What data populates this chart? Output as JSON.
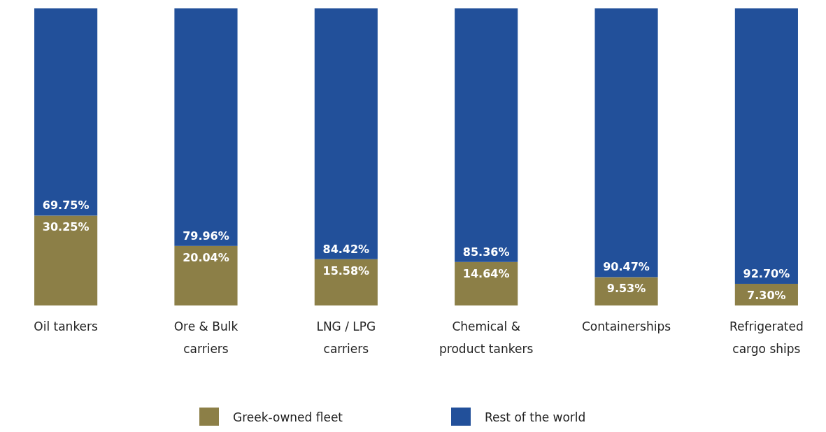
{
  "chart_data": {
    "type": "bar",
    "stacked": true,
    "categories": [
      "Oil tankers",
      "Ore & Bulk carriers",
      "LNG / LPG carriers",
      "Chemical & product tankers",
      "Containerships",
      "Refrigerated cargo ships"
    ],
    "series": [
      {
        "name": "Greek-owned fleet",
        "color": "#8c7f47",
        "values": [
          30.25,
          20.04,
          15.58,
          14.64,
          9.53,
          7.3
        ],
        "value_labels": [
          "30.25%",
          "20.04%",
          "15.58%",
          "14.64%",
          "9.53%",
          "7.30%"
        ]
      },
      {
        "name": "Rest of the world",
        "color": "#22509a",
        "values": [
          69.75,
          79.96,
          84.42,
          85.36,
          90.47,
          92.7
        ],
        "value_labels": [
          "69.75%",
          "79.96%",
          "84.42%",
          "85.36%",
          "90.47%",
          "92.70%"
        ]
      }
    ],
    "legend": "bottom"
  }
}
